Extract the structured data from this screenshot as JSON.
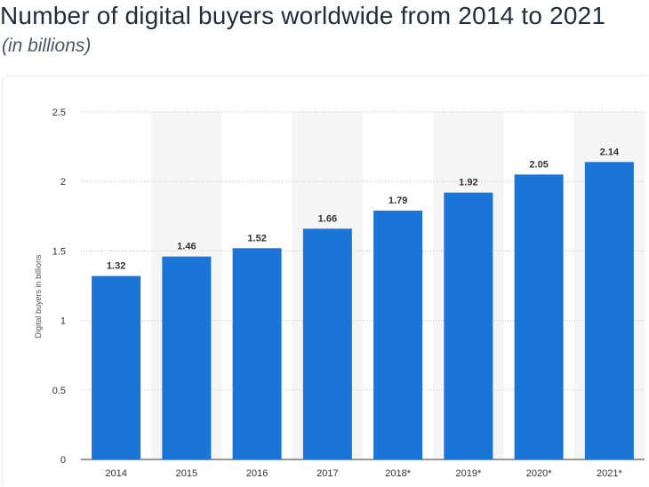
{
  "header": {
    "title": "Number of digital buyers worldwide from 2014 to 2021",
    "subtitle": "(in billions)"
  },
  "colors": {
    "bar": "#1a75d6",
    "band": "#f5f5f5",
    "grid": "#c8c8c8",
    "text": "#333333"
  },
  "chart_data": {
    "type": "bar",
    "categories": [
      "2014",
      "2015",
      "2016",
      "2017",
      "2018*",
      "2019*",
      "2020*",
      "2021*"
    ],
    "values": [
      1.32,
      1.46,
      1.52,
      1.66,
      1.79,
      1.92,
      2.05,
      2.14
    ],
    "data_labels": [
      "1.32",
      "1.46",
      "1.52",
      "1.66",
      "1.79",
      "1.92",
      "2.05",
      "2.14"
    ],
    "ylabel": "Digital buyers in billions",
    "ylim": [
      0,
      2.5
    ],
    "yticks": [
      0,
      0.5,
      1,
      1.5,
      2,
      2.5
    ],
    "ytick_labels": [
      "0",
      "0.5",
      "1",
      "1.5",
      "2",
      "2.5"
    ],
    "grid": true,
    "alternating_bands": true
  }
}
